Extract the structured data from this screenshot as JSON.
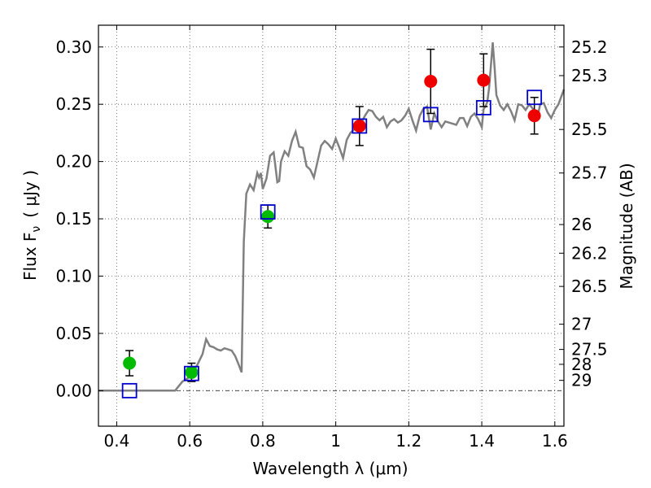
{
  "chart_data": {
    "type": "scatter",
    "xlabel": "Wavelength  λ (μm)",
    "ylabel_left": "Flux  F",
    "ylabel_left_sub": "ν",
    "ylabel_left_unit": "( μJy )",
    "ylabel_right": "Magnitude (AB)",
    "xlim": [
      0.35,
      1.625
    ],
    "ylim": [
      -0.031,
      0.319
    ],
    "grid": true,
    "x_ticks": [
      {
        "v": 0.4,
        "label": "0.4"
      },
      {
        "v": 0.6,
        "label": "0.6"
      },
      {
        "v": 0.8,
        "label": "0.8"
      },
      {
        "v": 1.0,
        "label": "1"
      },
      {
        "v": 1.2,
        "label": "1.2"
      },
      {
        "v": 1.4,
        "label": "1.4"
      },
      {
        "v": 1.6,
        "label": "1.6"
      }
    ],
    "y_ticks": [
      {
        "v": 0.0,
        "label": "0.00"
      },
      {
        "v": 0.05,
        "label": "0.05"
      },
      {
        "v": 0.1,
        "label": "0.10"
      },
      {
        "v": 0.15,
        "label": "0.15"
      },
      {
        "v": 0.2,
        "label": "0.20"
      },
      {
        "v": 0.25,
        "label": "0.25"
      },
      {
        "v": 0.3,
        "label": "0.30"
      }
    ],
    "right_ticks": [
      {
        "flux": 0.3,
        "label": "25.2"
      },
      {
        "flux": 0.275,
        "label": "25.3"
      },
      {
        "flux": 0.228,
        "label": "25.5"
      },
      {
        "flux": 0.19,
        "label": "25.7"
      },
      {
        "flux": 0.145,
        "label": "26"
      },
      {
        "flux": 0.12,
        "label": "26.2"
      },
      {
        "flux": 0.091,
        "label": "26.5"
      },
      {
        "flux": 0.058,
        "label": "27"
      },
      {
        "flux": 0.036,
        "label": "27.5"
      },
      {
        "flux": 0.023,
        "label": "28"
      },
      {
        "flux": 0.009,
        "label": "29"
      }
    ],
    "colors": {
      "model": "#808080",
      "green": "#00bb00",
      "red": "#ee0000",
      "square": "#0000cc",
      "errorbar": "#000000",
      "grid": "#555555"
    },
    "model_spectrum": {
      "x": [
        0.35,
        0.56,
        0.58,
        0.6,
        0.62,
        0.635,
        0.645,
        0.655,
        0.665,
        0.675,
        0.685,
        0.695,
        0.705,
        0.715,
        0.725,
        0.735,
        0.742,
        0.748,
        0.755,
        0.765,
        0.775,
        0.785,
        0.79,
        0.795,
        0.8,
        0.81,
        0.82,
        0.83,
        0.835,
        0.84,
        0.845,
        0.85,
        0.86,
        0.87,
        0.88,
        0.89,
        0.9,
        0.91,
        0.92,
        0.93,
        0.94,
        0.95,
        0.96,
        0.97,
        0.98,
        0.99,
        1.0,
        1.01,
        1.02,
        1.03,
        1.04,
        1.05,
        1.06,
        1.07,
        1.08,
        1.09,
        1.1,
        1.11,
        1.12,
        1.13,
        1.14,
        1.15,
        1.16,
        1.17,
        1.18,
        1.19,
        1.2,
        1.21,
        1.22,
        1.23,
        1.24,
        1.25,
        1.26,
        1.27,
        1.28,
        1.29,
        1.3,
        1.31,
        1.32,
        1.33,
        1.34,
        1.35,
        1.36,
        1.37,
        1.38,
        1.39,
        1.4,
        1.405,
        1.41,
        1.415,
        1.42,
        1.425,
        1.43,
        1.435,
        1.44,
        1.45,
        1.46,
        1.47,
        1.48,
        1.49,
        1.5,
        1.51,
        1.52,
        1.53,
        1.54,
        1.55,
        1.56,
        1.57,
        1.58,
        1.59,
        1.6,
        1.61,
        1.625
      ],
      "y": [
        0.0,
        0.0,
        0.008,
        0.012,
        0.022,
        0.032,
        0.045,
        0.039,
        0.038,
        0.036,
        0.035,
        0.037,
        0.036,
        0.035,
        0.03,
        0.022,
        0.016,
        0.13,
        0.172,
        0.18,
        0.175,
        0.19,
        0.186,
        0.19,
        0.176,
        0.185,
        0.205,
        0.208,
        0.195,
        0.182,
        0.183,
        0.2,
        0.209,
        0.205,
        0.218,
        0.226,
        0.213,
        0.212,
        0.196,
        0.193,
        0.186,
        0.2,
        0.214,
        0.218,
        0.215,
        0.211,
        0.22,
        0.212,
        0.203,
        0.219,
        0.225,
        0.228,
        0.23,
        0.234,
        0.24,
        0.245,
        0.244,
        0.239,
        0.236,
        0.239,
        0.23,
        0.235,
        0.237,
        0.234,
        0.236,
        0.24,
        0.246,
        0.236,
        0.227,
        0.24,
        0.246,
        0.248,
        0.228,
        0.242,
        0.235,
        0.23,
        0.235,
        0.234,
        0.233,
        0.232,
        0.238,
        0.238,
        0.231,
        0.239,
        0.242,
        0.237,
        0.23,
        0.246,
        0.248,
        0.252,
        0.264,
        0.284,
        0.304,
        0.282,
        0.258,
        0.249,
        0.245,
        0.25,
        0.244,
        0.236,
        0.25,
        0.249,
        0.245,
        0.25,
        0.246,
        0.235,
        0.25,
        0.251,
        0.243,
        0.238,
        0.245,
        0.25,
        0.263
      ]
    },
    "series": [
      {
        "marker": "circle",
        "color": "green",
        "points": [
          {
            "x": 0.435,
            "y": 0.024,
            "err": 0.011
          },
          {
            "x": 0.605,
            "y": 0.016,
            "err": 0.008
          },
          {
            "x": 0.814,
            "y": 0.152,
            "err": 0.01
          }
        ]
      },
      {
        "marker": "circle",
        "color": "red",
        "points": [
          {
            "x": 1.065,
            "y": 0.231,
            "err": 0.017
          },
          {
            "x": 1.26,
            "y": 0.27,
            "err": 0.028
          },
          {
            "x": 1.405,
            "y": 0.271,
            "err": 0.023
          },
          {
            "x": 1.544,
            "y": 0.24,
            "err": 0.016
          }
        ]
      },
      {
        "marker": "square",
        "color": "square",
        "points": [
          {
            "x": 0.435,
            "y": 0.0
          },
          {
            "x": 0.605,
            "y": 0.015
          },
          {
            "x": 0.814,
            "y": 0.156
          },
          {
            "x": 1.065,
            "y": 0.231
          },
          {
            "x": 1.26,
            "y": 0.241
          },
          {
            "x": 1.405,
            "y": 0.247
          },
          {
            "x": 1.544,
            "y": 0.256
          }
        ]
      }
    ]
  }
}
